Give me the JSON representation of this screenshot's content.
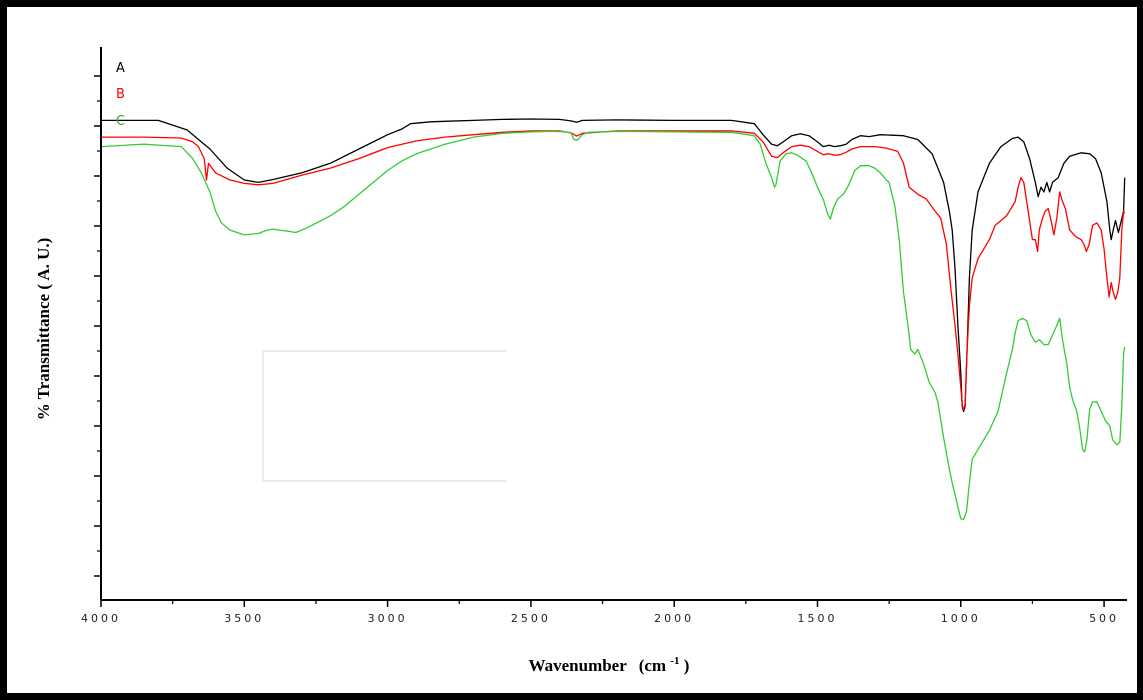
{
  "chart_data": {
    "type": "line",
    "xlabel": "Wavenumber",
    "xlabel_unit": "(cm",
    "xlabel_unit_sup": "-1",
    "xlabel_unit_close": ")",
    "ylabel": "% Transmittance ( A. U.)",
    "xlim": [
      4000,
      420
    ],
    "ylim": [
      0,
      100
    ],
    "x_reversed": true,
    "x_ticks": [
      4000,
      3500,
      3000,
      2500,
      2000,
      1500,
      1000,
      500
    ],
    "x_tick_labels": [
      "4000",
      "3500",
      "3000",
      "2500",
      "2000",
      "1500",
      "1000",
      "500"
    ],
    "grid": false,
    "series": [
      {
        "name": "A",
        "color": "#000000",
        "points": [
          [
            4000,
            93
          ],
          [
            3800,
            93
          ],
          [
            3700,
            91
          ],
          [
            3620,
            87
          ],
          [
            3560,
            83
          ],
          [
            3500,
            80.5
          ],
          [
            3450,
            80
          ],
          [
            3400,
            80.6
          ],
          [
            3300,
            82
          ],
          [
            3200,
            84
          ],
          [
            3100,
            87
          ],
          [
            3000,
            90
          ],
          [
            2950,
            91.2
          ],
          [
            2920,
            92.3
          ],
          [
            2850,
            92.7
          ],
          [
            2800,
            92.8
          ],
          [
            2700,
            93
          ],
          [
            2600,
            93.2
          ],
          [
            2500,
            93.3
          ],
          [
            2400,
            93.2
          ],
          [
            2360,
            92.9
          ],
          [
            2340,
            92.6
          ],
          [
            2320,
            93
          ],
          [
            2200,
            93.1
          ],
          [
            2000,
            93
          ],
          [
            1800,
            93
          ],
          [
            1720,
            92.3
          ],
          [
            1690,
            90
          ],
          [
            1660,
            88
          ],
          [
            1640,
            87.7
          ],
          [
            1620,
            88.5
          ],
          [
            1590,
            89.8
          ],
          [
            1560,
            90.2
          ],
          [
            1530,
            89.8
          ],
          [
            1500,
            88.5
          ],
          [
            1480,
            87.5
          ],
          [
            1460,
            87.8
          ],
          [
            1440,
            87.5
          ],
          [
            1420,
            87.7
          ],
          [
            1400,
            88
          ],
          [
            1380,
            89
          ],
          [
            1350,
            89.8
          ],
          [
            1320,
            89.6
          ],
          [
            1280,
            90
          ],
          [
            1200,
            89.8
          ],
          [
            1150,
            89
          ],
          [
            1100,
            86
          ],
          [
            1060,
            80
          ],
          [
            1040,
            74
          ],
          [
            1030,
            70
          ],
          [
            1020,
            62
          ],
          [
            1010,
            50
          ],
          [
            1000,
            40
          ],
          [
            995,
            33
          ],
          [
            990,
            32
          ],
          [
            985,
            33
          ],
          [
            978,
            45
          ],
          [
            970,
            60
          ],
          [
            960,
            70
          ],
          [
            940,
            78
          ],
          [
            900,
            84
          ],
          [
            860,
            87.5
          ],
          [
            820,
            89.2
          ],
          [
            800,
            89.5
          ],
          [
            780,
            88.5
          ],
          [
            760,
            85
          ],
          [
            740,
            80
          ],
          [
            730,
            77
          ],
          [
            720,
            79
          ],
          [
            710,
            78
          ],
          [
            700,
            80
          ],
          [
            690,
            78
          ],
          [
            680,
            80
          ],
          [
            660,
            81
          ],
          [
            640,
            84
          ],
          [
            620,
            85.5
          ],
          [
            580,
            86.2
          ],
          [
            550,
            86
          ],
          [
            530,
            85
          ],
          [
            510,
            82
          ],
          [
            490,
            76
          ],
          [
            480,
            70
          ],
          [
            475,
            68
          ],
          [
            468,
            70
          ],
          [
            460,
            72
          ],
          [
            450,
            69.5
          ],
          [
            440,
            72
          ],
          [
            432,
            74
          ],
          [
            428,
            81
          ]
        ]
      },
      {
        "name": "B",
        "color": "#ff0000",
        "points": [
          [
            4000,
            89.5
          ],
          [
            3850,
            89.5
          ],
          [
            3720,
            89.3
          ],
          [
            3680,
            88.5
          ],
          [
            3660,
            87.5
          ],
          [
            3640,
            85
          ],
          [
            3632,
            80.5
          ],
          [
            3625,
            84
          ],
          [
            3600,
            82
          ],
          [
            3550,
            80.5
          ],
          [
            3500,
            79.8
          ],
          [
            3450,
            79.5
          ],
          [
            3400,
            79.8
          ],
          [
            3300,
            81.5
          ],
          [
            3200,
            83
          ],
          [
            3100,
            85
          ],
          [
            3000,
            87.3
          ],
          [
            2900,
            88.7
          ],
          [
            2800,
            89.5
          ],
          [
            2700,
            90
          ],
          [
            2600,
            90.5
          ],
          [
            2500,
            90.8
          ],
          [
            2400,
            90.8
          ],
          [
            2360,
            90.4
          ],
          [
            2340,
            89.7
          ],
          [
            2320,
            90.3
          ],
          [
            2200,
            90.8
          ],
          [
            2000,
            90.8
          ],
          [
            1800,
            90.8
          ],
          [
            1720,
            90.3
          ],
          [
            1690,
            88.5
          ],
          [
            1660,
            85.5
          ],
          [
            1640,
            85.2
          ],
          [
            1620,
            86.2
          ],
          [
            1590,
            87.5
          ],
          [
            1560,
            87.8
          ],
          [
            1530,
            87.5
          ],
          [
            1500,
            86.5
          ],
          [
            1480,
            85.8
          ],
          [
            1460,
            86
          ],
          [
            1440,
            85.7
          ],
          [
            1420,
            85.8
          ],
          [
            1400,
            86.3
          ],
          [
            1380,
            87
          ],
          [
            1350,
            87.5
          ],
          [
            1300,
            87.5
          ],
          [
            1260,
            87.2
          ],
          [
            1220,
            86.5
          ],
          [
            1200,
            84
          ],
          [
            1180,
            79
          ],
          [
            1150,
            77.5
          ],
          [
            1120,
            76.5
          ],
          [
            1090,
            74
          ],
          [
            1070,
            72.5
          ],
          [
            1050,
            67
          ],
          [
            1035,
            58
          ],
          [
            1020,
            50
          ],
          [
            1010,
            44
          ],
          [
            1000,
            37
          ],
          [
            994,
            33
          ],
          [
            990,
            32.4
          ],
          [
            985,
            33.5
          ],
          [
            978,
            45
          ],
          [
            970,
            54
          ],
          [
            960,
            60
          ],
          [
            940,
            64
          ],
          [
            920,
            66
          ],
          [
            900,
            68
          ],
          [
            880,
            71
          ],
          [
            860,
            72
          ],
          [
            840,
            73
          ],
          [
            810,
            76
          ],
          [
            800,
            79
          ],
          [
            790,
            81
          ],
          [
            780,
            80
          ],
          [
            770,
            76
          ],
          [
            760,
            72
          ],
          [
            750,
            68
          ],
          [
            740,
            68
          ],
          [
            732,
            65.5
          ],
          [
            726,
            70
          ],
          [
            715,
            72.5
          ],
          [
            705,
            74
          ],
          [
            695,
            74.5
          ],
          [
            685,
            72
          ],
          [
            675,
            69
          ],
          [
            665,
            72.5
          ],
          [
            655,
            78
          ],
          [
            645,
            76
          ],
          [
            635,
            74.5
          ],
          [
            620,
            70
          ],
          [
            605,
            69
          ],
          [
            595,
            68.5
          ],
          [
            580,
            68
          ],
          [
            570,
            67
          ],
          [
            562,
            65.5
          ],
          [
            552,
            67
          ],
          [
            540,
            71
          ],
          [
            525,
            71.5
          ],
          [
            510,
            70
          ],
          [
            500,
            66
          ],
          [
            490,
            60
          ],
          [
            482,
            56
          ],
          [
            475,
            59
          ],
          [
            468,
            57
          ],
          [
            460,
            55.5
          ],
          [
            452,
            57
          ],
          [
            445,
            60
          ],
          [
            438,
            70
          ],
          [
            432,
            74
          ],
          [
            428,
            73.5
          ]
        ]
      },
      {
        "name": "C",
        "color": "#33cc33",
        "points": [
          [
            4000,
            87.5
          ],
          [
            3850,
            88
          ],
          [
            3720,
            87.5
          ],
          [
            3680,
            85
          ],
          [
            3650,
            82
          ],
          [
            3620,
            78
          ],
          [
            3600,
            74
          ],
          [
            3580,
            71.5
          ],
          [
            3550,
            70
          ],
          [
            3500,
            69
          ],
          [
            3450,
            69.3
          ],
          [
            3420,
            70
          ],
          [
            3400,
            70.2
          ],
          [
            3380,
            70
          ],
          [
            3350,
            69.8
          ],
          [
            3320,
            69.5
          ],
          [
            3280,
            70.5
          ],
          [
            3200,
            73
          ],
          [
            3150,
            75
          ],
          [
            3100,
            77.5
          ],
          [
            3050,
            80
          ],
          [
            3000,
            82.5
          ],
          [
            2950,
            84.5
          ],
          [
            2900,
            86
          ],
          [
            2800,
            88
          ],
          [
            2700,
            89.5
          ],
          [
            2600,
            90.3
          ],
          [
            2500,
            90.6
          ],
          [
            2420,
            90.7
          ],
          [
            2380,
            90.6
          ],
          [
            2360,
            90.4
          ],
          [
            2350,
            89
          ],
          [
            2340,
            88.8
          ],
          [
            2320,
            90
          ],
          [
            2300,
            90.5
          ],
          [
            2200,
            90.7
          ],
          [
            2000,
            90.6
          ],
          [
            1800,
            90.5
          ],
          [
            1720,
            89.8
          ],
          [
            1700,
            88
          ],
          [
            1680,
            84
          ],
          [
            1660,
            81
          ],
          [
            1650,
            79
          ],
          [
            1645,
            79.5
          ],
          [
            1630,
            84.5
          ],
          [
            1610,
            86
          ],
          [
            1590,
            86.2
          ],
          [
            1570,
            85.7
          ],
          [
            1540,
            84.5
          ],
          [
            1520,
            82
          ],
          [
            1500,
            79
          ],
          [
            1480,
            76.5
          ],
          [
            1465,
            73.5
          ],
          [
            1455,
            72.3
          ],
          [
            1445,
            74.5
          ],
          [
            1430,
            76.5
          ],
          [
            1410,
            77.5
          ],
          [
            1395,
            79
          ],
          [
            1380,
            81
          ],
          [
            1370,
            82.5
          ],
          [
            1350,
            83.5
          ],
          [
            1320,
            83.5
          ],
          [
            1300,
            83
          ],
          [
            1280,
            82
          ],
          [
            1260,
            80.5
          ],
          [
            1250,
            80
          ],
          [
            1230,
            75
          ],
          [
            1215,
            68
          ],
          [
            1200,
            57
          ],
          [
            1180,
            48
          ],
          [
            1175,
            45
          ],
          [
            1160,
            44
          ],
          [
            1150,
            45
          ],
          [
            1130,
            42
          ],
          [
            1110,
            38
          ],
          [
            1090,
            36
          ],
          [
            1080,
            34
          ],
          [
            1060,
            26.5
          ],
          [
            1040,
            20
          ],
          [
            1030,
            17
          ],
          [
            1010,
            12
          ],
          [
            1000,
            9.5
          ],
          [
            990,
            9.3
          ],
          [
            980,
            11
          ],
          [
            970,
            17
          ],
          [
            960,
            22
          ],
          [
            950,
            23
          ],
          [
            930,
            25
          ],
          [
            900,
            28
          ],
          [
            870,
            32
          ],
          [
            840,
            40
          ],
          [
            820,
            45
          ],
          [
            810,
            48.5
          ],
          [
            800,
            51
          ],
          [
            785,
            51.5
          ],
          [
            770,
            51
          ],
          [
            755,
            48
          ],
          [
            740,
            46.5
          ],
          [
            725,
            47
          ],
          [
            710,
            46
          ],
          [
            695,
            46
          ],
          [
            680,
            48
          ],
          [
            665,
            50
          ],
          [
            655,
            51.5
          ],
          [
            645,
            47
          ],
          [
            630,
            42
          ],
          [
            620,
            37
          ],
          [
            610,
            34.5
          ],
          [
            595,
            32
          ],
          [
            585,
            28.5
          ],
          [
            575,
            24
          ],
          [
            568,
            23.5
          ],
          [
            560,
            26
          ],
          [
            550,
            32.5
          ],
          [
            540,
            34
          ],
          [
            525,
            34
          ],
          [
            510,
            32
          ],
          [
            495,
            30
          ],
          [
            480,
            29
          ],
          [
            470,
            26
          ],
          [
            455,
            25
          ],
          [
            445,
            25.5
          ],
          [
            438,
            33
          ],
          [
            432,
            44
          ],
          [
            428,
            45.5
          ]
        ]
      }
    ]
  }
}
